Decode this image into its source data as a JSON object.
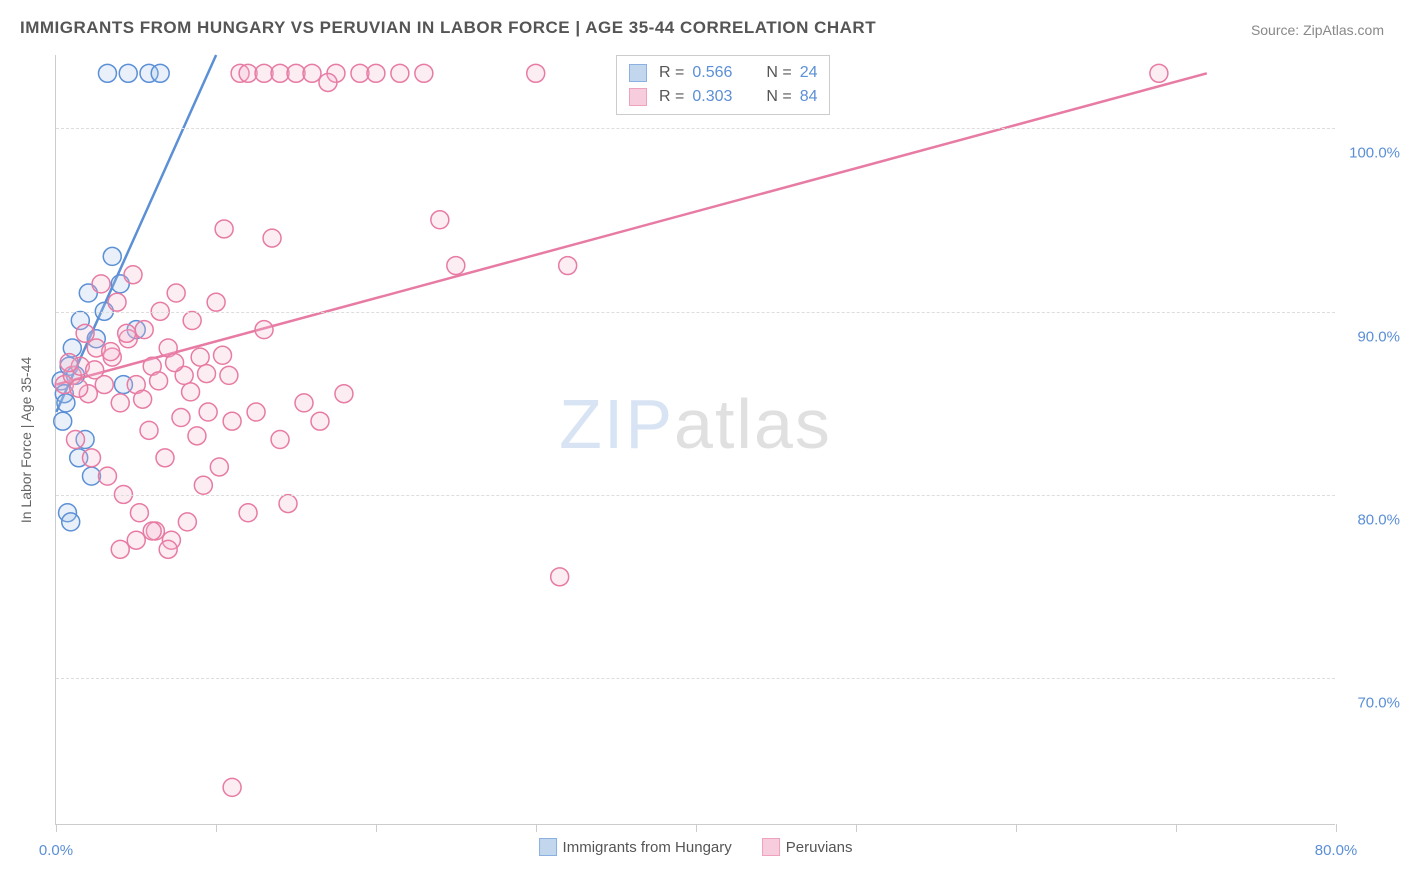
{
  "title": "IMMIGRANTS FROM HUNGARY VS PERUVIAN IN LABOR FORCE | AGE 35-44 CORRELATION CHART",
  "source": "Source: ZipAtlas.com",
  "y_axis_label": "In Labor Force | Age 35-44",
  "watermark_a": "ZIP",
  "watermark_b": "atlas",
  "chart": {
    "type": "scatter",
    "background_color": "#ffffff",
    "grid_color": "#dddddd",
    "axis_color": "#cccccc",
    "tick_label_color": "#5b8fd6",
    "xlim": [
      0,
      80
    ],
    "ylim": [
      62,
      104
    ],
    "y_gridlines": [
      70,
      80,
      90,
      100
    ],
    "y_tick_labels": [
      "70.0%",
      "80.0%",
      "90.0%",
      "100.0%"
    ],
    "x_ticks": [
      0,
      40,
      80
    ],
    "x_tick_labels": [
      "0.0%",
      "",
      "80.0%"
    ],
    "x_minor_ticks": [
      10,
      20,
      30,
      50,
      60,
      70
    ],
    "marker_radius": 9,
    "marker_fill_opacity": 0.25,
    "marker_stroke_width": 1.5,
    "line_width": 2.5
  },
  "series": [
    {
      "key": "hungary",
      "label": "Immigrants from Hungary",
      "color_stroke": "#5b8fd6",
      "color_fill": "#a9c5e8",
      "R": "0.566",
      "N": "24",
      "trend": {
        "x1": 0,
        "y1": 84.5,
        "x2": 10,
        "y2": 104
      },
      "points": [
        [
          0.3,
          86.2
        ],
        [
          0.5,
          85.5
        ],
        [
          0.8,
          87.0
        ],
        [
          0.4,
          84.0
        ],
        [
          1.0,
          88.0
        ],
        [
          0.6,
          85.0
        ],
        [
          1.5,
          89.5
        ],
        [
          1.2,
          86.5
        ],
        [
          2.0,
          91.0
        ],
        [
          2.5,
          88.5
        ],
        [
          3.0,
          90.0
        ],
        [
          1.8,
          83.0
        ],
        [
          0.7,
          79.0
        ],
        [
          0.9,
          78.5
        ],
        [
          3.5,
          93.0
        ],
        [
          4.0,
          91.5
        ],
        [
          3.2,
          103.0
        ],
        [
          4.5,
          103.0
        ],
        [
          5.8,
          103.0
        ],
        [
          6.5,
          103.0
        ],
        [
          5.0,
          89.0
        ],
        [
          4.2,
          86.0
        ],
        [
          2.2,
          81.0
        ],
        [
          1.4,
          82.0
        ]
      ]
    },
    {
      "key": "peruvian",
      "label": "Peruvians",
      "color_stroke": "#e77ba3",
      "color_fill": "#f5b7ce",
      "R": "0.303",
      "N": "84",
      "trend": {
        "x1": 0,
        "y1": 86.0,
        "x2": 72,
        "y2": 103
      },
      "points": [
        [
          0.5,
          86.0
        ],
        [
          1.0,
          86.5
        ],
        [
          1.5,
          87.0
        ],
        [
          2.0,
          85.5
        ],
        [
          2.5,
          88.0
        ],
        [
          3.0,
          86.0
        ],
        [
          3.5,
          87.5
        ],
        [
          4.0,
          85.0
        ],
        [
          4.5,
          88.5
        ],
        [
          5.0,
          86.0
        ],
        [
          5.5,
          89.0
        ],
        [
          6.0,
          87.0
        ],
        [
          6.5,
          90.0
        ],
        [
          7.0,
          88.0
        ],
        [
          7.5,
          91.0
        ],
        [
          8.0,
          86.5
        ],
        [
          8.5,
          89.5
        ],
        [
          9.0,
          87.5
        ],
        [
          9.5,
          84.5
        ],
        [
          10.0,
          90.5
        ],
        [
          1.2,
          83.0
        ],
        [
          2.2,
          82.0
        ],
        [
          3.2,
          81.0
        ],
        [
          4.2,
          80.0
        ],
        [
          5.2,
          79.0
        ],
        [
          6.2,
          78.0
        ],
        [
          7.2,
          77.5
        ],
        [
          8.2,
          78.5
        ],
        [
          9.2,
          80.5
        ],
        [
          10.2,
          81.5
        ],
        [
          4.0,
          77.0
        ],
        [
          5.0,
          77.5
        ],
        [
          6.0,
          78.0
        ],
        [
          7.0,
          77.0
        ],
        [
          11.0,
          84.0
        ],
        [
          12.0,
          79.0
        ],
        [
          12.5,
          84.5
        ],
        [
          13.0,
          89.0
        ],
        [
          14.0,
          83.0
        ],
        [
          14.5,
          79.5
        ],
        [
          10.5,
          94.5
        ],
        [
          13.5,
          94.0
        ],
        [
          11.5,
          103.0
        ],
        [
          12.0,
          103.0
        ],
        [
          13.0,
          103.0
        ],
        [
          14.0,
          103.0
        ],
        [
          15.0,
          103.0
        ],
        [
          16.0,
          103.0
        ],
        [
          17.5,
          103.0
        ],
        [
          19.0,
          103.0
        ],
        [
          20.0,
          103.0
        ],
        [
          21.5,
          103.0
        ],
        [
          23.0,
          103.0
        ],
        [
          17.0,
          102.5
        ],
        [
          24.0,
          95.0
        ],
        [
          25.0,
          92.5
        ],
        [
          30.0,
          103.0
        ],
        [
          31.5,
          75.5
        ],
        [
          32.0,
          92.5
        ],
        [
          11.0,
          64.0
        ],
        [
          10.8,
          86.5
        ],
        [
          3.8,
          90.5
        ],
        [
          2.8,
          91.5
        ],
        [
          1.8,
          88.8
        ],
        [
          0.8,
          87.2
        ],
        [
          1.4,
          85.8
        ],
        [
          2.4,
          86.8
        ],
        [
          3.4,
          87.8
        ],
        [
          4.4,
          88.8
        ],
        [
          5.4,
          85.2
        ],
        [
          6.4,
          86.2
        ],
        [
          7.4,
          87.2
        ],
        [
          8.4,
          85.6
        ],
        [
          9.4,
          86.6
        ],
        [
          10.4,
          87.6
        ],
        [
          69.0,
          103.0
        ],
        [
          5.8,
          83.5
        ],
        [
          6.8,
          82.0
        ],
        [
          7.8,
          84.2
        ],
        [
          8.8,
          83.2
        ],
        [
          15.5,
          85.0
        ],
        [
          16.5,
          84.0
        ],
        [
          18.0,
          85.5
        ],
        [
          4.8,
          92.0
        ]
      ]
    }
  ],
  "legend_top": {
    "R_label": "R =",
    "N_label": "N ="
  }
}
